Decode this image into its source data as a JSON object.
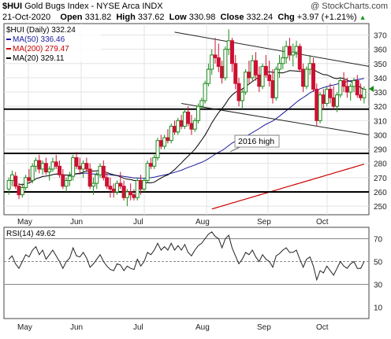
{
  "header": {
    "symbol": "$HUI",
    "name": "Gold Bugs Index - NYSE Arca",
    "exchange": "INDX",
    "watermark": "@ StockCharts.com",
    "date": "21-Oct-2020",
    "open_label": "Open",
    "open": "331.82",
    "high_label": "High",
    "high": "337.62",
    "low_label": "Low",
    "low": "330.98",
    "close_label": "Close",
    "close": "332.24",
    "chg_label": "Chg",
    "chg": "+3.97 (+1.21%)",
    "chg_symbol": "▲"
  },
  "chart_data": [
    {
      "type": "candlestick",
      "title": "$HUI (Daily) 332.24",
      "legend": [
        {
          "label": "MA(50) 336.46",
          "color": "#1a1aa0"
        },
        {
          "label": "MA(200) 279.47",
          "color": "#cc0000"
        },
        {
          "label": "MA(20) 329.11",
          "color": "#000000"
        }
      ],
      "ylim": [
        244,
        378
      ],
      "y_ticks": [
        250,
        260,
        270,
        280,
        290,
        300,
        310,
        320,
        330,
        340,
        350,
        360,
        370
      ],
      "x_tick_labels": [
        "May",
        "Jun",
        "Jul",
        "Aug",
        "Sep",
        "Oct"
      ],
      "horizontal_lines": [
        318,
        287,
        260
      ],
      "annotation": "2016 high",
      "trend_channel": {
        "upper": [
          [
            "2020-08-04",
            372
          ],
          [
            "2020-10-21",
            348
          ]
        ],
        "lower": [
          [
            "2020-08-06",
            322
          ],
          [
            "2020-10-21",
            300
          ]
        ]
      },
      "close_marker": 332.24,
      "ohlc": [
        [
          262,
          270,
          258,
          268
        ],
        [
          268,
          275,
          264,
          272
        ],
        [
          271,
          274,
          262,
          264
        ],
        [
          264,
          266,
          255,
          258
        ],
        [
          258,
          266,
          256,
          263
        ],
        [
          263,
          272,
          261,
          270
        ],
        [
          270,
          276,
          266,
          268
        ],
        [
          268,
          280,
          266,
          278
        ],
        [
          278,
          284,
          274,
          282
        ],
        [
          282,
          286,
          273,
          276
        ],
        [
          276,
          282,
          272,
          280
        ],
        [
          280,
          284,
          272,
          274
        ],
        [
          274,
          278,
          268,
          276
        ],
        [
          276,
          284,
          274,
          281
        ],
        [
          281,
          286,
          276,
          278
        ],
        [
          278,
          282,
          270,
          272
        ],
        [
          272,
          276,
          262,
          264
        ],
        [
          264,
          270,
          260,
          268
        ],
        [
          268,
          274,
          264,
          271
        ],
        [
          271,
          286,
          268,
          284
        ],
        [
          284,
          288,
          276,
          278
        ],
        [
          278,
          284,
          272,
          276
        ],
        [
          276,
          282,
          270,
          280
        ],
        [
          280,
          284,
          274,
          276
        ],
        [
          276,
          280,
          262,
          264
        ],
        [
          264,
          270,
          258,
          266
        ],
        [
          266,
          274,
          262,
          272
        ],
        [
          272,
          280,
          270,
          278
        ],
        [
          278,
          282,
          268,
          270
        ],
        [
          270,
          274,
          262,
          264
        ],
        [
          264,
          270,
          256,
          262
        ],
        [
          262,
          266,
          256,
          260
        ],
        [
          260,
          268,
          258,
          266
        ],
        [
          266,
          274,
          262,
          264
        ],
        [
          264,
          268,
          254,
          256
        ],
        [
          256,
          262,
          250,
          260
        ],
        [
          260,
          266,
          254,
          258
        ],
        [
          258,
          262,
          254,
          256
        ],
        [
          256,
          270,
          254,
          268
        ],
        [
          268,
          272,
          258,
          262
        ],
        [
          262,
          270,
          260,
          268
        ],
        [
          268,
          282,
          266,
          280
        ],
        [
          280,
          284,
          276,
          278
        ],
        [
          278,
          286,
          276,
          284
        ],
        [
          284,
          298,
          282,
          296
        ],
        [
          296,
          300,
          290,
          292
        ],
        [
          292,
          300,
          290,
          298
        ],
        [
          298,
          304,
          294,
          296
        ],
        [
          296,
          308,
          294,
          306
        ],
        [
          306,
          310,
          300,
          302
        ],
        [
          302,
          312,
          300,
          310
        ],
        [
          310,
          314,
          304,
          306
        ],
        [
          306,
          318,
          304,
          316
        ],
        [
          316,
          320,
          306,
          308
        ],
        [
          308,
          314,
          300,
          304
        ],
        [
          304,
          312,
          302,
          310
        ],
        [
          310,
          322,
          308,
          320
        ],
        [
          320,
          326,
          318,
          324
        ],
        [
          324,
          338,
          322,
          336
        ],
        [
          336,
          350,
          334,
          346
        ],
        [
          346,
          360,
          342,
          356
        ],
        [
          356,
          368,
          350,
          354
        ],
        [
          354,
          364,
          344,
          348
        ],
        [
          348,
          352,
          336,
          340
        ],
        [
          340,
          362,
          338,
          360
        ],
        [
          360,
          374,
          356,
          366
        ],
        [
          366,
          368,
          344,
          350
        ],
        [
          350,
          356,
          332,
          336
        ],
        [
          336,
          340,
          320,
          324
        ],
        [
          324,
          332,
          318,
          330
        ],
        [
          330,
          346,
          328,
          344
        ],
        [
          344,
          352,
          336,
          340
        ],
        [
          340,
          356,
          338,
          352
        ],
        [
          352,
          358,
          338,
          342
        ],
        [
          342,
          348,
          330,
          334
        ],
        [
          334,
          350,
          332,
          348
        ],
        [
          348,
          356,
          340,
          342
        ],
        [
          342,
          352,
          334,
          338
        ],
        [
          338,
          346,
          322,
          326
        ],
        [
          326,
          348,
          324,
          346
        ],
        [
          346,
          356,
          340,
          350
        ],
        [
          350,
          362,
          346,
          354
        ],
        [
          354,
          366,
          350,
          362
        ],
        [
          362,
          368,
          352,
          356
        ],
        [
          356,
          364,
          348,
          358
        ],
        [
          358,
          366,
          354,
          362
        ],
        [
          362,
          364,
          344,
          346
        ],
        [
          346,
          350,
          330,
          334
        ],
        [
          334,
          348,
          332,
          346
        ],
        [
          346,
          356,
          342,
          350
        ],
        [
          350,
          354,
          330,
          332
        ],
        [
          332,
          336,
          306,
          310
        ],
        [
          310,
          330,
          308,
          328
        ],
        [
          328,
          332,
          318,
          322
        ],
        [
          322,
          334,
          320,
          332
        ],
        [
          332,
          336,
          322,
          326
        ],
        [
          326,
          334,
          318,
          320
        ],
        [
          320,
          330,
          316,
          328
        ],
        [
          328,
          340,
          326,
          338
        ],
        [
          338,
          344,
          330,
          334
        ],
        [
          334,
          340,
          326,
          330
        ],
        [
          330,
          336,
          324,
          334
        ],
        [
          334,
          340,
          330,
          338
        ],
        [
          338,
          342,
          326,
          328
        ],
        [
          328,
          336,
          324,
          326
        ],
        [
          326,
          334,
          322,
          332
        ]
      ]
    },
    {
      "type": "line",
      "title": "RSI(14) 49.62",
      "ylim": [
        0,
        80
      ],
      "y_ticks": [
        10,
        30,
        50,
        70
      ],
      "reference_lines": [
        70,
        50,
        30
      ],
      "x_tick_labels": [
        "May",
        "Jun",
        "Jul",
        "Aug",
        "Sep",
        "Oct"
      ],
      "values": [
        52,
        55,
        48,
        44,
        50,
        56,
        54,
        60,
        63,
        56,
        60,
        52,
        56,
        60,
        55,
        50,
        44,
        50,
        53,
        62,
        55,
        54,
        58,
        53,
        45,
        48,
        52,
        56,
        50,
        46,
        43,
        42,
        48,
        47,
        42,
        46,
        44,
        43,
        52,
        46,
        50,
        58,
        56,
        60,
        66,
        60,
        63,
        60,
        66,
        60,
        64,
        60,
        65,
        58,
        55,
        60,
        64,
        66,
        70,
        74,
        76,
        72,
        70,
        62,
        70,
        73,
        62,
        55,
        48,
        52,
        58,
        56,
        60,
        54,
        50,
        56,
        52,
        50,
        45,
        55,
        57,
        60,
        62,
        58,
        58,
        60,
        52,
        45,
        52,
        54,
        46,
        34,
        42,
        40,
        46,
        42,
        38,
        44,
        50,
        46,
        44,
        48,
        50,
        44,
        44,
        50
      ]
    }
  ]
}
